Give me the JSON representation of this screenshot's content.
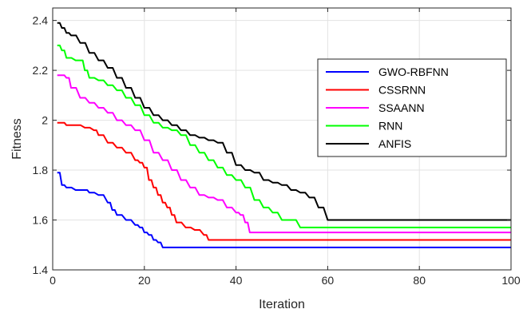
{
  "chart_data": {
    "type": "line",
    "title": "",
    "xlabel": "Iteration",
    "ylabel": "Fitness",
    "xlim": [
      0,
      100
    ],
    "ylim": [
      1.4,
      2.45
    ],
    "xticks": [
      0,
      20,
      40,
      60,
      80,
      100
    ],
    "yticks": [
      1.4,
      1.6,
      1.8,
      2,
      2.2,
      2.4
    ],
    "xtick_labels": [
      "0",
      "20",
      "40",
      "60",
      "80",
      "100"
    ],
    "ytick_labels": [
      "1.4",
      "1.6",
      "1.8",
      "2",
      "2.2",
      "2.4"
    ],
    "grid": true,
    "legend_position": "top-right",
    "series": [
      {
        "name": "GWO-RBFNN",
        "color": "#0000ff",
        "x": [
          1,
          2,
          3,
          5,
          7,
          8,
          10,
          12,
          13,
          14,
          16,
          18,
          19,
          20,
          21,
          22,
          23,
          24,
          30,
          40,
          60,
          80,
          100
        ],
        "y": [
          1.79,
          1.74,
          1.73,
          1.72,
          1.72,
          1.71,
          1.7,
          1.67,
          1.64,
          1.62,
          1.6,
          1.58,
          1.57,
          1.55,
          1.54,
          1.52,
          1.51,
          1.49,
          1.49,
          1.49,
          1.49,
          1.49,
          1.49
        ]
      },
      {
        "name": "CSSRNN",
        "color": "#ff0000",
        "x": [
          1,
          2,
          3,
          5,
          7,
          9,
          10,
          12,
          14,
          16,
          18,
          19,
          20,
          21,
          22,
          23,
          24,
          25,
          26,
          27,
          29,
          31,
          33,
          34,
          40,
          60,
          80,
          100
        ],
        "y": [
          1.99,
          1.99,
          1.98,
          1.98,
          1.97,
          1.96,
          1.94,
          1.91,
          1.89,
          1.87,
          1.84,
          1.83,
          1.81,
          1.76,
          1.73,
          1.7,
          1.67,
          1.65,
          1.62,
          1.59,
          1.57,
          1.56,
          1.54,
          1.52,
          1.52,
          1.52,
          1.52,
          1.52
        ]
      },
      {
        "name": "SSAANN",
        "color": "#ff00ff",
        "x": [
          1,
          2,
          3,
          4,
          6,
          8,
          10,
          12,
          14,
          16,
          18,
          20,
          22,
          24,
          26,
          28,
          30,
          32,
          34,
          36,
          38,
          40,
          41,
          42,
          43,
          50,
          60,
          80,
          100
        ],
        "y": [
          2.18,
          2.18,
          2.17,
          2.13,
          2.09,
          2.07,
          2.05,
          2.03,
          2.0,
          1.98,
          1.96,
          1.92,
          1.87,
          1.84,
          1.8,
          1.76,
          1.73,
          1.7,
          1.69,
          1.68,
          1.65,
          1.63,
          1.62,
          1.59,
          1.55,
          1.55,
          1.55,
          1.55,
          1.55
        ]
      },
      {
        "name": "RNN",
        "color": "#00ff00",
        "x": [
          1,
          2,
          3,
          5,
          6,
          7,
          8,
          10,
          12,
          14,
          16,
          18,
          20,
          22,
          24,
          26,
          28,
          30,
          32,
          34,
          36,
          38,
          40,
          42,
          44,
          46,
          48,
          50,
          52,
          54,
          60,
          80,
          100
        ],
        "y": [
          2.3,
          2.28,
          2.25,
          2.24,
          2.24,
          2.2,
          2.17,
          2.16,
          2.14,
          2.12,
          2.09,
          2.06,
          2.02,
          1.99,
          1.97,
          1.96,
          1.94,
          1.9,
          1.87,
          1.84,
          1.81,
          1.78,
          1.76,
          1.73,
          1.68,
          1.65,
          1.63,
          1.6,
          1.6,
          1.57,
          1.57,
          1.57,
          1.57
        ]
      },
      {
        "name": "ANFIS",
        "color": "#000000",
        "x": [
          1,
          2,
          3,
          4,
          6,
          8,
          10,
          12,
          14,
          16,
          18,
          20,
          22,
          24,
          26,
          28,
          30,
          32,
          34,
          36,
          38,
          40,
          42,
          44,
          46,
          48,
          50,
          52,
          54,
          56,
          58,
          60,
          80,
          100
        ],
        "y": [
          2.39,
          2.37,
          2.35,
          2.34,
          2.31,
          2.27,
          2.24,
          2.21,
          2.17,
          2.13,
          2.09,
          2.05,
          2.02,
          2.0,
          1.98,
          1.96,
          1.94,
          1.93,
          1.92,
          1.91,
          1.87,
          1.82,
          1.8,
          1.79,
          1.76,
          1.75,
          1.74,
          1.72,
          1.71,
          1.69,
          1.65,
          1.6,
          1.6,
          1.6
        ]
      }
    ]
  }
}
